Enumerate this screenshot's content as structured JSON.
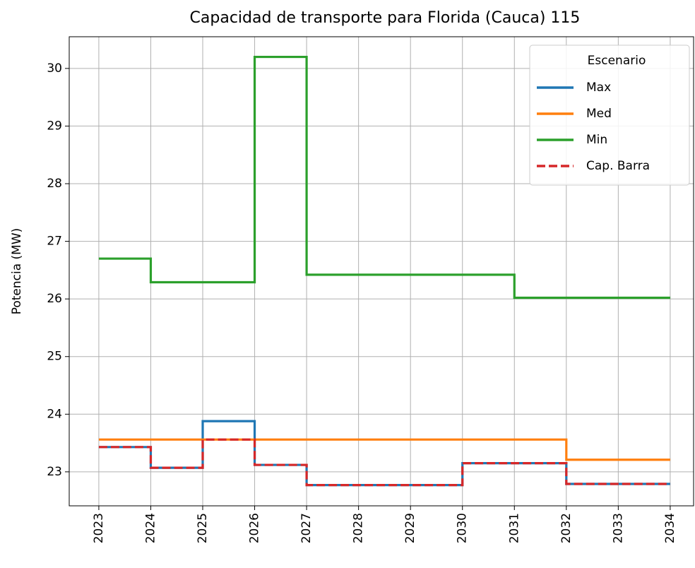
{
  "chart_data": {
    "type": "step",
    "title": "Capacidad de transporte para Florida (Cauca) 115",
    "ylabel": "Potencia (MW)",
    "x": [
      2023,
      2024,
      2025,
      2026,
      2027,
      2028,
      2029,
      2030,
      2031,
      2032,
      2033,
      2034
    ],
    "series": [
      {
        "name": "Max",
        "color": "#1f77b4",
        "dash": false,
        "values": [
          23.43,
          23.07,
          23.88,
          23.12,
          22.77,
          22.77,
          22.77,
          23.15,
          23.15,
          22.79,
          22.79,
          22.79
        ]
      },
      {
        "name": "Med",
        "color": "#ff7f0e",
        "dash": false,
        "values": [
          23.56,
          23.56,
          23.56,
          23.56,
          23.56,
          23.56,
          23.56,
          23.56,
          23.56,
          23.21,
          23.21,
          23.21
        ]
      },
      {
        "name": "Min",
        "color": "#2ca02c",
        "dash": false,
        "values": [
          26.7,
          26.29,
          26.29,
          30.2,
          26.42,
          26.42,
          26.42,
          26.42,
          26.02,
          26.02,
          26.02,
          26.02
        ]
      },
      {
        "name": "Cap. Barra",
        "color": "#d62728",
        "dash": true,
        "values": [
          23.43,
          23.07,
          23.56,
          23.12,
          22.77,
          22.77,
          22.77,
          23.15,
          23.15,
          22.79,
          22.79,
          22.79
        ]
      }
    ],
    "legend_title": "Escenario",
    "legend": "upper right",
    "grid": true,
    "xlim": [
      2022.43,
      2034.45
    ],
    "xticks": [
      2023,
      2024,
      2025,
      2026,
      2027,
      2028,
      2029,
      2030,
      2031,
      2032,
      2033,
      2034
    ],
    "ylim": [
      22.41,
      30.55
    ],
    "yticks": [
      23,
      24,
      25,
      26,
      27,
      28,
      29,
      30
    ]
  }
}
